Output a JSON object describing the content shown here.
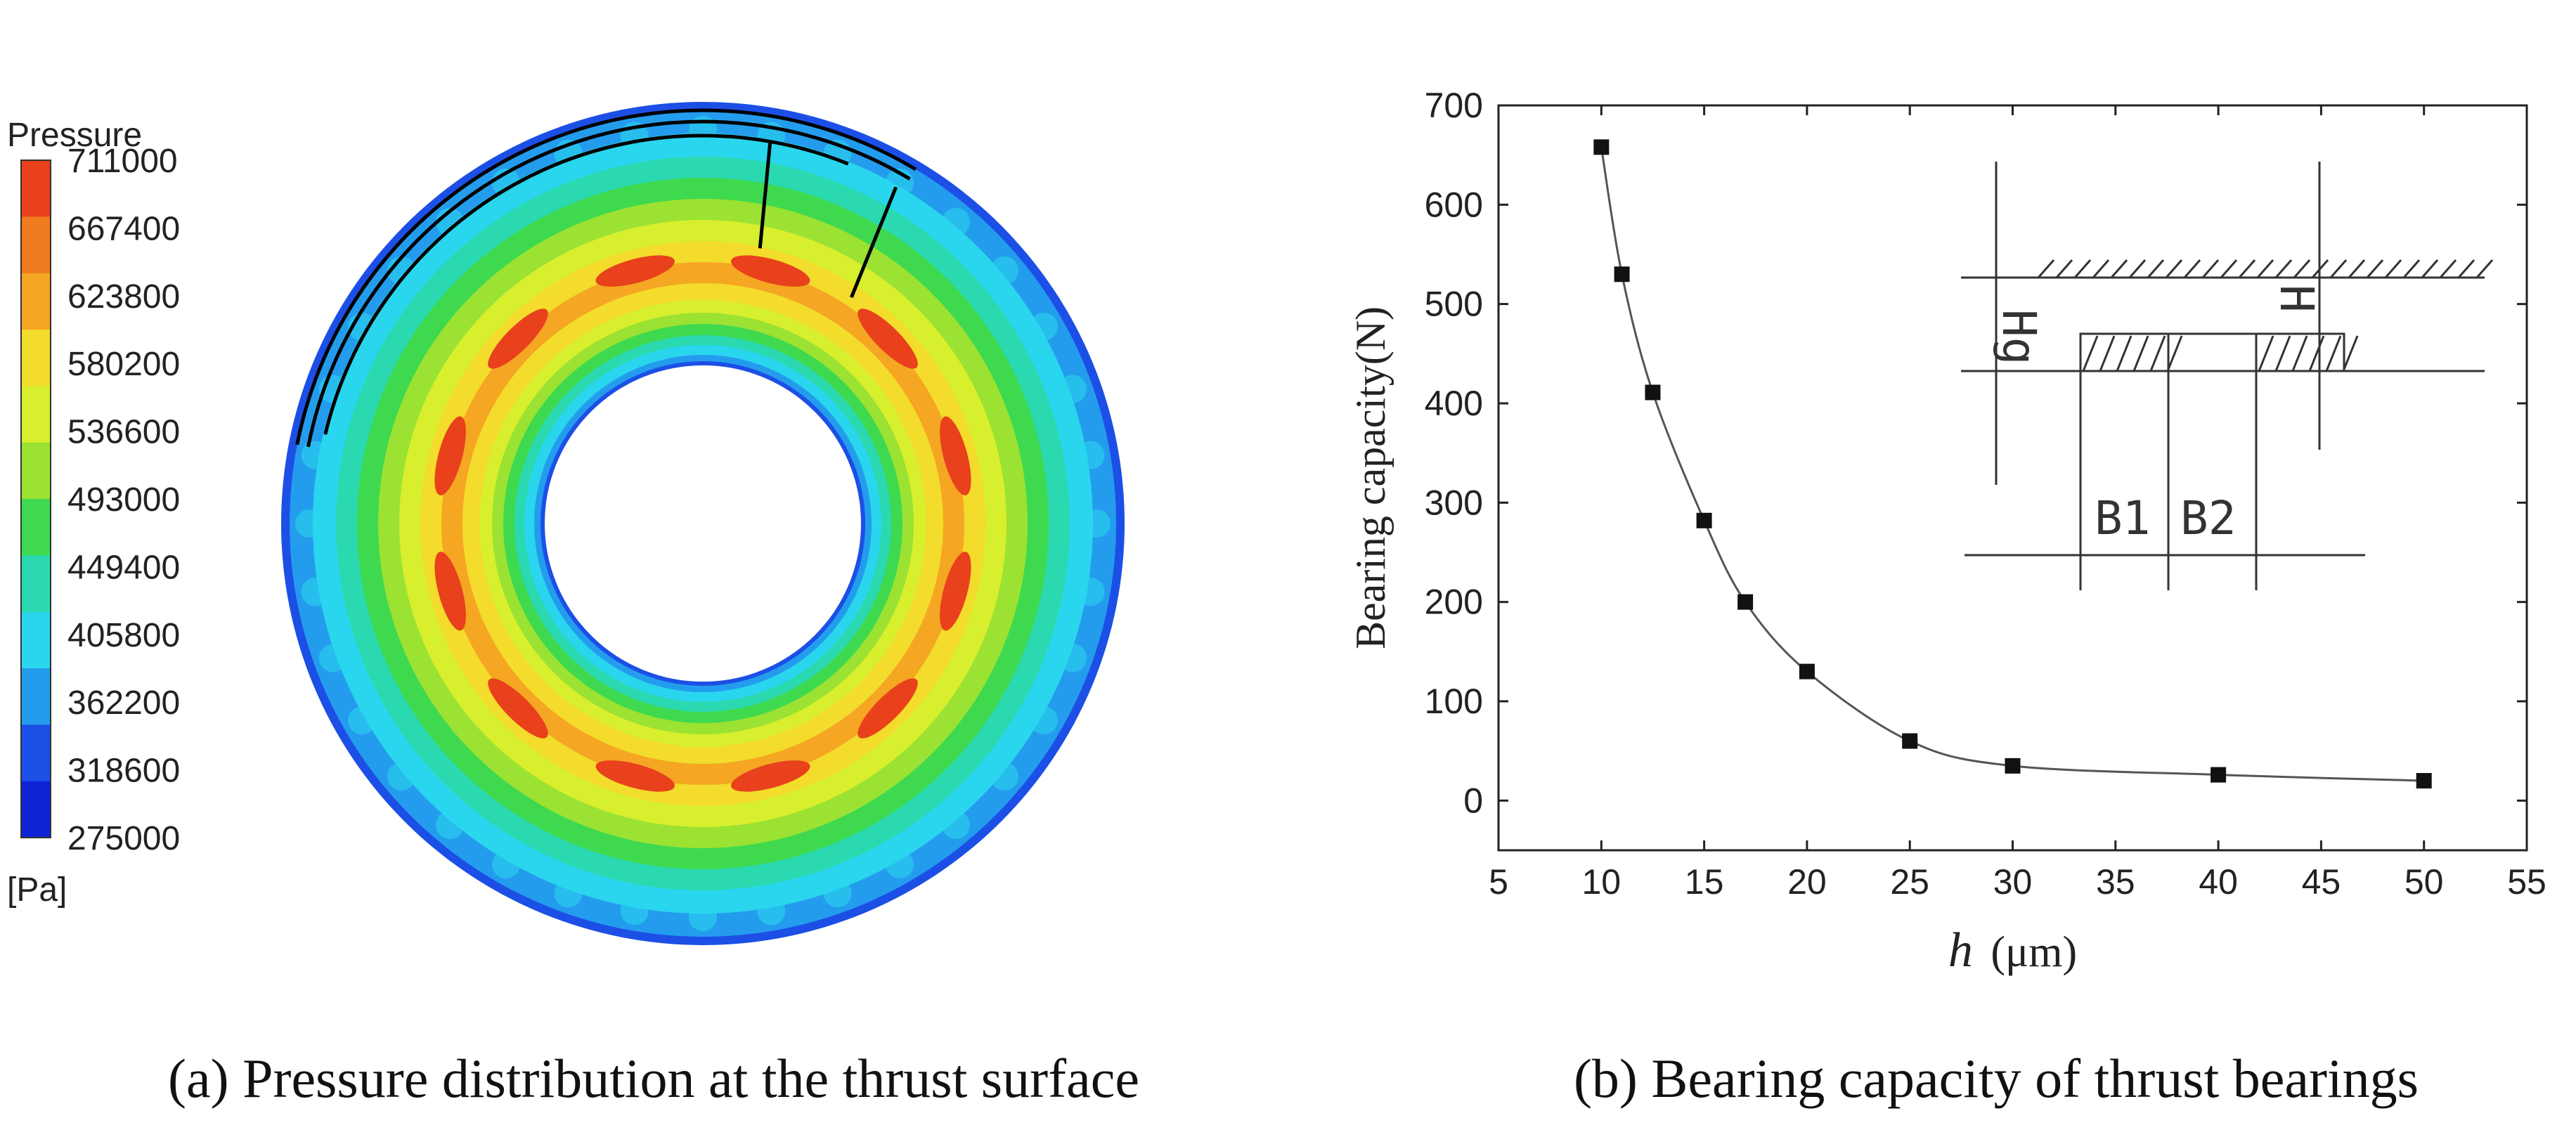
{
  "chart_data": [
    {
      "type": "heatmap",
      "panel": "a",
      "caption": "(a) Pressure distribution at the thrust surface",
      "colorbar": {
        "title": "Pressure",
        "unit": "[Pa]",
        "levels": [
          "711000",
          "667400",
          "623800",
          "580200",
          "536600",
          "493000",
          "449400",
          "405800",
          "362200",
          "318600",
          "275000"
        ],
        "colors": [
          "#e8411c",
          "#f07a1e",
          "#f5a623",
          "#f3dc2b",
          "#d8ef2d",
          "#9be233",
          "#3fd94f",
          "#2ad9b0",
          "#2ad6ee",
          "#249ced",
          "#1c4fe6",
          "#0f22d6"
        ]
      },
      "pad_count": 12
    },
    {
      "type": "line",
      "panel": "b",
      "caption": "(b) Bearing capacity of thrust bearings",
      "ylabel": "Bearing capacity(N)",
      "xlabel_symbol": "h",
      "xlabel_unit": "(μm)",
      "xlim": [
        5,
        55
      ],
      "ylim": [
        -50,
        700
      ],
      "xticks": [
        5,
        10,
        15,
        20,
        25,
        30,
        35,
        40,
        45,
        50,
        55
      ],
      "yticks": [
        0,
        100,
        200,
        300,
        400,
        500,
        600,
        700
      ],
      "series": [
        {
          "name": "Bearing capacity",
          "x": [
            10,
            11,
            12.5,
            15,
            17,
            20,
            25,
            30,
            40,
            50
          ],
          "y": [
            658,
            530,
            411,
            282,
            200,
            130,
            60,
            35,
            26,
            20
          ]
        }
      ],
      "inset_labels": {
        "hg": "Hg",
        "h": "H",
        "b1": "B1",
        "b2": "B2"
      }
    }
  ],
  "colors": {
    "line": "#555555",
    "marker": "#111111",
    "axis": "#222222"
  }
}
